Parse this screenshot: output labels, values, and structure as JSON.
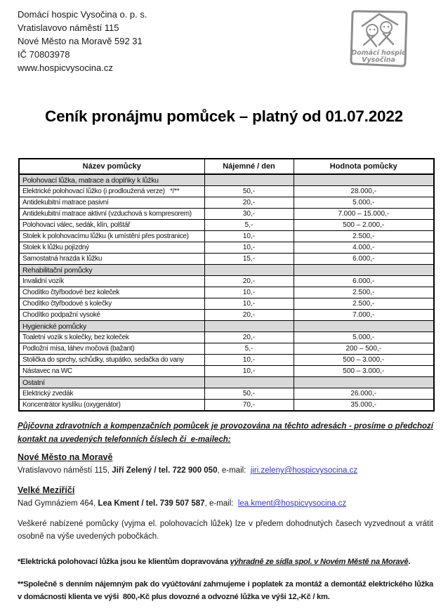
{
  "colors": {
    "link": "#3333cc",
    "section_row_bg": "#d9d9d9",
    "logo_gray": "#8d8d8d",
    "table_border": "#000000"
  },
  "header": {
    "org_lines": [
      "Domácí hospic Vysočina o. p. s.",
      "Vratislavovo náměstí 115",
      "Nové Město na Moravě 592 31",
      "IČ 70803978",
      "www.hospicvysocina.cz"
    ],
    "logo": {
      "line1": "Domácí hospic",
      "line2": "Vysočina"
    }
  },
  "title": "Ceník pronájmu pomůcek – platný od 01.07.2022",
  "table": {
    "columns": [
      "Název pomůcky",
      "Nájemné / den",
      "Hodnota pomůcky"
    ],
    "rows": [
      {
        "type": "section",
        "name": "Polohovací lůžka, matrace a doplňky k lůžku"
      },
      {
        "type": "item",
        "name": "Elektrické polohovací lůžko (i prodloužená verze)   */**",
        "rent": "50,-",
        "value": "28.000,-"
      },
      {
        "type": "item",
        "name": "Antidekubitní matrace pasivní",
        "rent": "20,-",
        "value": "5.000,-"
      },
      {
        "type": "item",
        "name": "Antidekubitní matrace aktivní (vzduchová s kompresorem)",
        "rent": "30,-",
        "value": "7.000 – 15.000,-"
      },
      {
        "type": "item",
        "name": "Polohovací válec, sedák, klín, polštář",
        "rent": "5,-",
        "value": "500 – 2.000,-"
      },
      {
        "type": "item",
        "name": "Stolek k polohovacímu lůžku (k umístění přes postranice)",
        "rent": "10,-",
        "value": "2.500,-"
      },
      {
        "type": "item",
        "name": "Stolek k lůžku pojízdný",
        "rent": "10,-",
        "value": "4.000,-"
      },
      {
        "type": "item",
        "name": "Samostatná hrazda k lůžku",
        "rent": "15,-",
        "value": "6.000,-"
      },
      {
        "type": "section",
        "name": "Rehabilitační pomůcky"
      },
      {
        "type": "item",
        "name": "Invalidní vozík",
        "rent": "20,-",
        "value": "6.000,-"
      },
      {
        "type": "item",
        "name": "Chodítko čtyřbodové bez koleček",
        "rent": "10,-",
        "value": "2.500,-"
      },
      {
        "type": "item",
        "name": "Chodítko čtyřbodové s kolečky",
        "rent": "10,-",
        "value": "2.500,-"
      },
      {
        "type": "item",
        "name": "Chodítko podpažní vysoké",
        "rent": "20,-",
        "value": "7.000,-"
      },
      {
        "type": "section",
        "name": "Hygienické pomůcky"
      },
      {
        "type": "item",
        "name": "Toaletní vozík s kolečky, bez koleček",
        "rent": "20,-",
        "value": "5.000,-"
      },
      {
        "type": "item",
        "name": "Podložní mísa, láhev močová (bažant)",
        "rent": "5,-",
        "value": "200 – 500,-"
      },
      {
        "type": "item",
        "name": "Stolička do sprchy, schůdky, stupátko, sedačka do vany",
        "rent": "10,-",
        "value": "500 – 3.000,-"
      },
      {
        "type": "item",
        "name": "Nástavec na WC",
        "rent": "10,-",
        "value": "500 – 3.000,-"
      },
      {
        "type": "section",
        "name": "Ostatní"
      },
      {
        "type": "item",
        "name": "Elektrický zvedák",
        "rent": "50,-",
        "value": "26.000,-"
      },
      {
        "type": "item",
        "name": "Koncentrátor kyslíku (oxygenátor)",
        "rent": "70,-",
        "value": "35.000,-"
      }
    ]
  },
  "intro_note": "Půjčovna zdravotních a kompenzačních pomůcek je provozována na těchto adresách - prosíme o předchozí kontakt na uvedených telefonních číslech či  e-mailech:",
  "contacts": [
    {
      "city": "Nové Město na Moravě",
      "address": "Vratislavovo náměstí 115, ",
      "person_tel": "Jiří Zelený / tel. 722 900 050",
      "email_label": ", e-mail:  ",
      "email": "jiri.zeleny@hospicvysocina.cz"
    },
    {
      "city": "Velké Meziříčí",
      "address": "Nad Gymnáziem 464, ",
      "person_tel": "Lea Kment / tel. 739 507 587",
      "email_label": ", e-mail:  ",
      "email": "lea.kment@hospicvysocina.cz"
    }
  ],
  "closing_para": "Veškeré nabízené pomůcky (vyjma el. polohovacích lůžek) lze v předem dohodnutých časech vyzvednout a vrátit osobně na výše uvedených pobočkách.",
  "footnotes": {
    "fn1_prefix": "*Elektrická polohovací lůžka jsou ke klientům dopravována ",
    "fn1_underlined": "výhradně ze sídla spol. v Novém Městě na Moravě",
    "fn1_suffix": ".",
    "fn2": "**Společně s denním nájemným pak do vyúčtování zahrnujeme i poplatek za montáž a demontáž elektrického lůžka v domácnosti klienta ve výši  800,-Kč plus dovozné a odvozné lůžka ve výši 12,-Kč / km."
  }
}
